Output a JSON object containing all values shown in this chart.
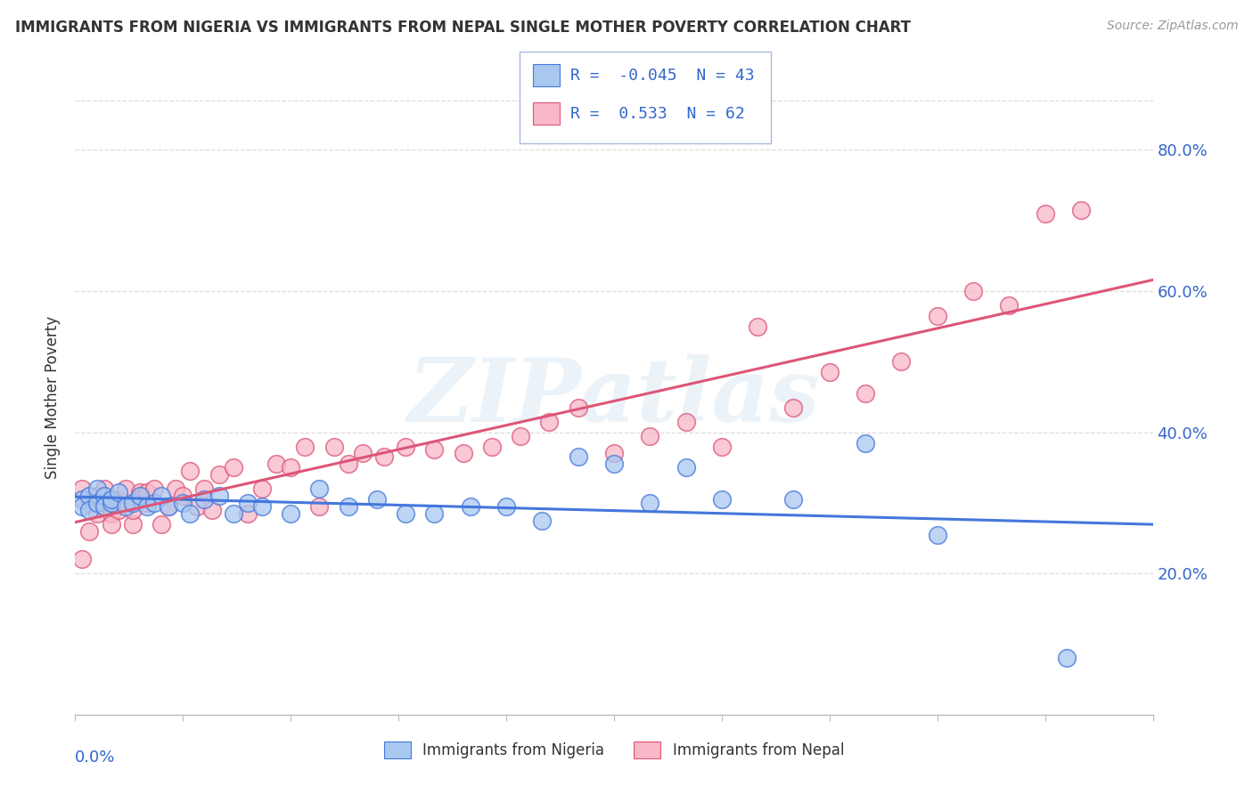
{
  "title": "IMMIGRANTS FROM NIGERIA VS IMMIGRANTS FROM NEPAL SINGLE MOTHER POVERTY CORRELATION CHART",
  "source": "Source: ZipAtlas.com",
  "ylabel": "Single Mother Poverty",
  "legend_nigeria": "Immigrants from Nigeria",
  "legend_nepal": "Immigrants from Nepal",
  "R_nigeria": -0.045,
  "N_nigeria": 43,
  "R_nepal": 0.533,
  "N_nepal": 62,
  "nigeria_color": "#a8c8f0",
  "nepal_color": "#f8b8c8",
  "nigeria_line_color": "#4477dd",
  "nepal_line_color": "#dd5577",
  "nigeria_points_x": [
    0.001,
    0.001,
    0.002,
    0.002,
    0.003,
    0.003,
    0.004,
    0.004,
    0.005,
    0.005,
    0.006,
    0.007,
    0.008,
    0.009,
    0.01,
    0.011,
    0.012,
    0.013,
    0.015,
    0.016,
    0.018,
    0.02,
    0.022,
    0.024,
    0.026,
    0.03,
    0.034,
    0.038,
    0.042,
    0.046,
    0.05,
    0.055,
    0.06,
    0.065,
    0.07,
    0.075,
    0.08,
    0.085,
    0.09,
    0.1,
    0.11,
    0.12,
    0.138
  ],
  "nigeria_points_y": [
    0.305,
    0.295,
    0.31,
    0.29,
    0.32,
    0.3,
    0.31,
    0.295,
    0.3,
    0.305,
    0.315,
    0.295,
    0.3,
    0.31,
    0.295,
    0.3,
    0.31,
    0.295,
    0.3,
    0.285,
    0.305,
    0.31,
    0.285,
    0.3,
    0.295,
    0.285,
    0.32,
    0.295,
    0.305,
    0.285,
    0.285,
    0.295,
    0.295,
    0.275,
    0.365,
    0.355,
    0.3,
    0.35,
    0.305,
    0.305,
    0.385,
    0.255,
    0.08
  ],
  "nepal_points_x": [
    0.001,
    0.001,
    0.002,
    0.002,
    0.003,
    0.003,
    0.004,
    0.004,
    0.005,
    0.005,
    0.006,
    0.006,
    0.007,
    0.007,
    0.008,
    0.008,
    0.009,
    0.009,
    0.01,
    0.01,
    0.011,
    0.012,
    0.013,
    0.014,
    0.015,
    0.016,
    0.017,
    0.018,
    0.019,
    0.02,
    0.022,
    0.024,
    0.026,
    0.028,
    0.03,
    0.032,
    0.034,
    0.036,
    0.038,
    0.04,
    0.043,
    0.046,
    0.05,
    0.054,
    0.058,
    0.062,
    0.066,
    0.07,
    0.075,
    0.08,
    0.085,
    0.09,
    0.095,
    0.1,
    0.105,
    0.11,
    0.115,
    0.12,
    0.125,
    0.13,
    0.135,
    0.14
  ],
  "nepal_points_y": [
    0.22,
    0.32,
    0.26,
    0.3,
    0.285,
    0.31,
    0.295,
    0.32,
    0.285,
    0.27,
    0.305,
    0.29,
    0.3,
    0.32,
    0.27,
    0.29,
    0.315,
    0.305,
    0.3,
    0.315,
    0.32,
    0.27,
    0.295,
    0.32,
    0.31,
    0.345,
    0.295,
    0.32,
    0.29,
    0.34,
    0.35,
    0.285,
    0.32,
    0.355,
    0.35,
    0.38,
    0.295,
    0.38,
    0.355,
    0.37,
    0.365,
    0.38,
    0.375,
    0.37,
    0.38,
    0.395,
    0.415,
    0.435,
    0.37,
    0.395,
    0.415,
    0.38,
    0.55,
    0.435,
    0.485,
    0.455,
    0.5,
    0.565,
    0.6,
    0.58,
    0.71,
    0.715
  ],
  "xlim": [
    0.0,
    0.15
  ],
  "ylim": [
    0.0,
    0.9
  ],
  "yticks": [
    0.2,
    0.4,
    0.6,
    0.8
  ],
  "ytick_labels": [
    "20.0%",
    "40.0%",
    "60.0%",
    "80.0%"
  ],
  "xtick_count": 11,
  "watermark_text": "ZIPatlas",
  "background_color": "#ffffff",
  "grid_color": "#dddddd",
  "text_color": "#3366cc",
  "title_color": "#333333",
  "source_color": "#999999"
}
